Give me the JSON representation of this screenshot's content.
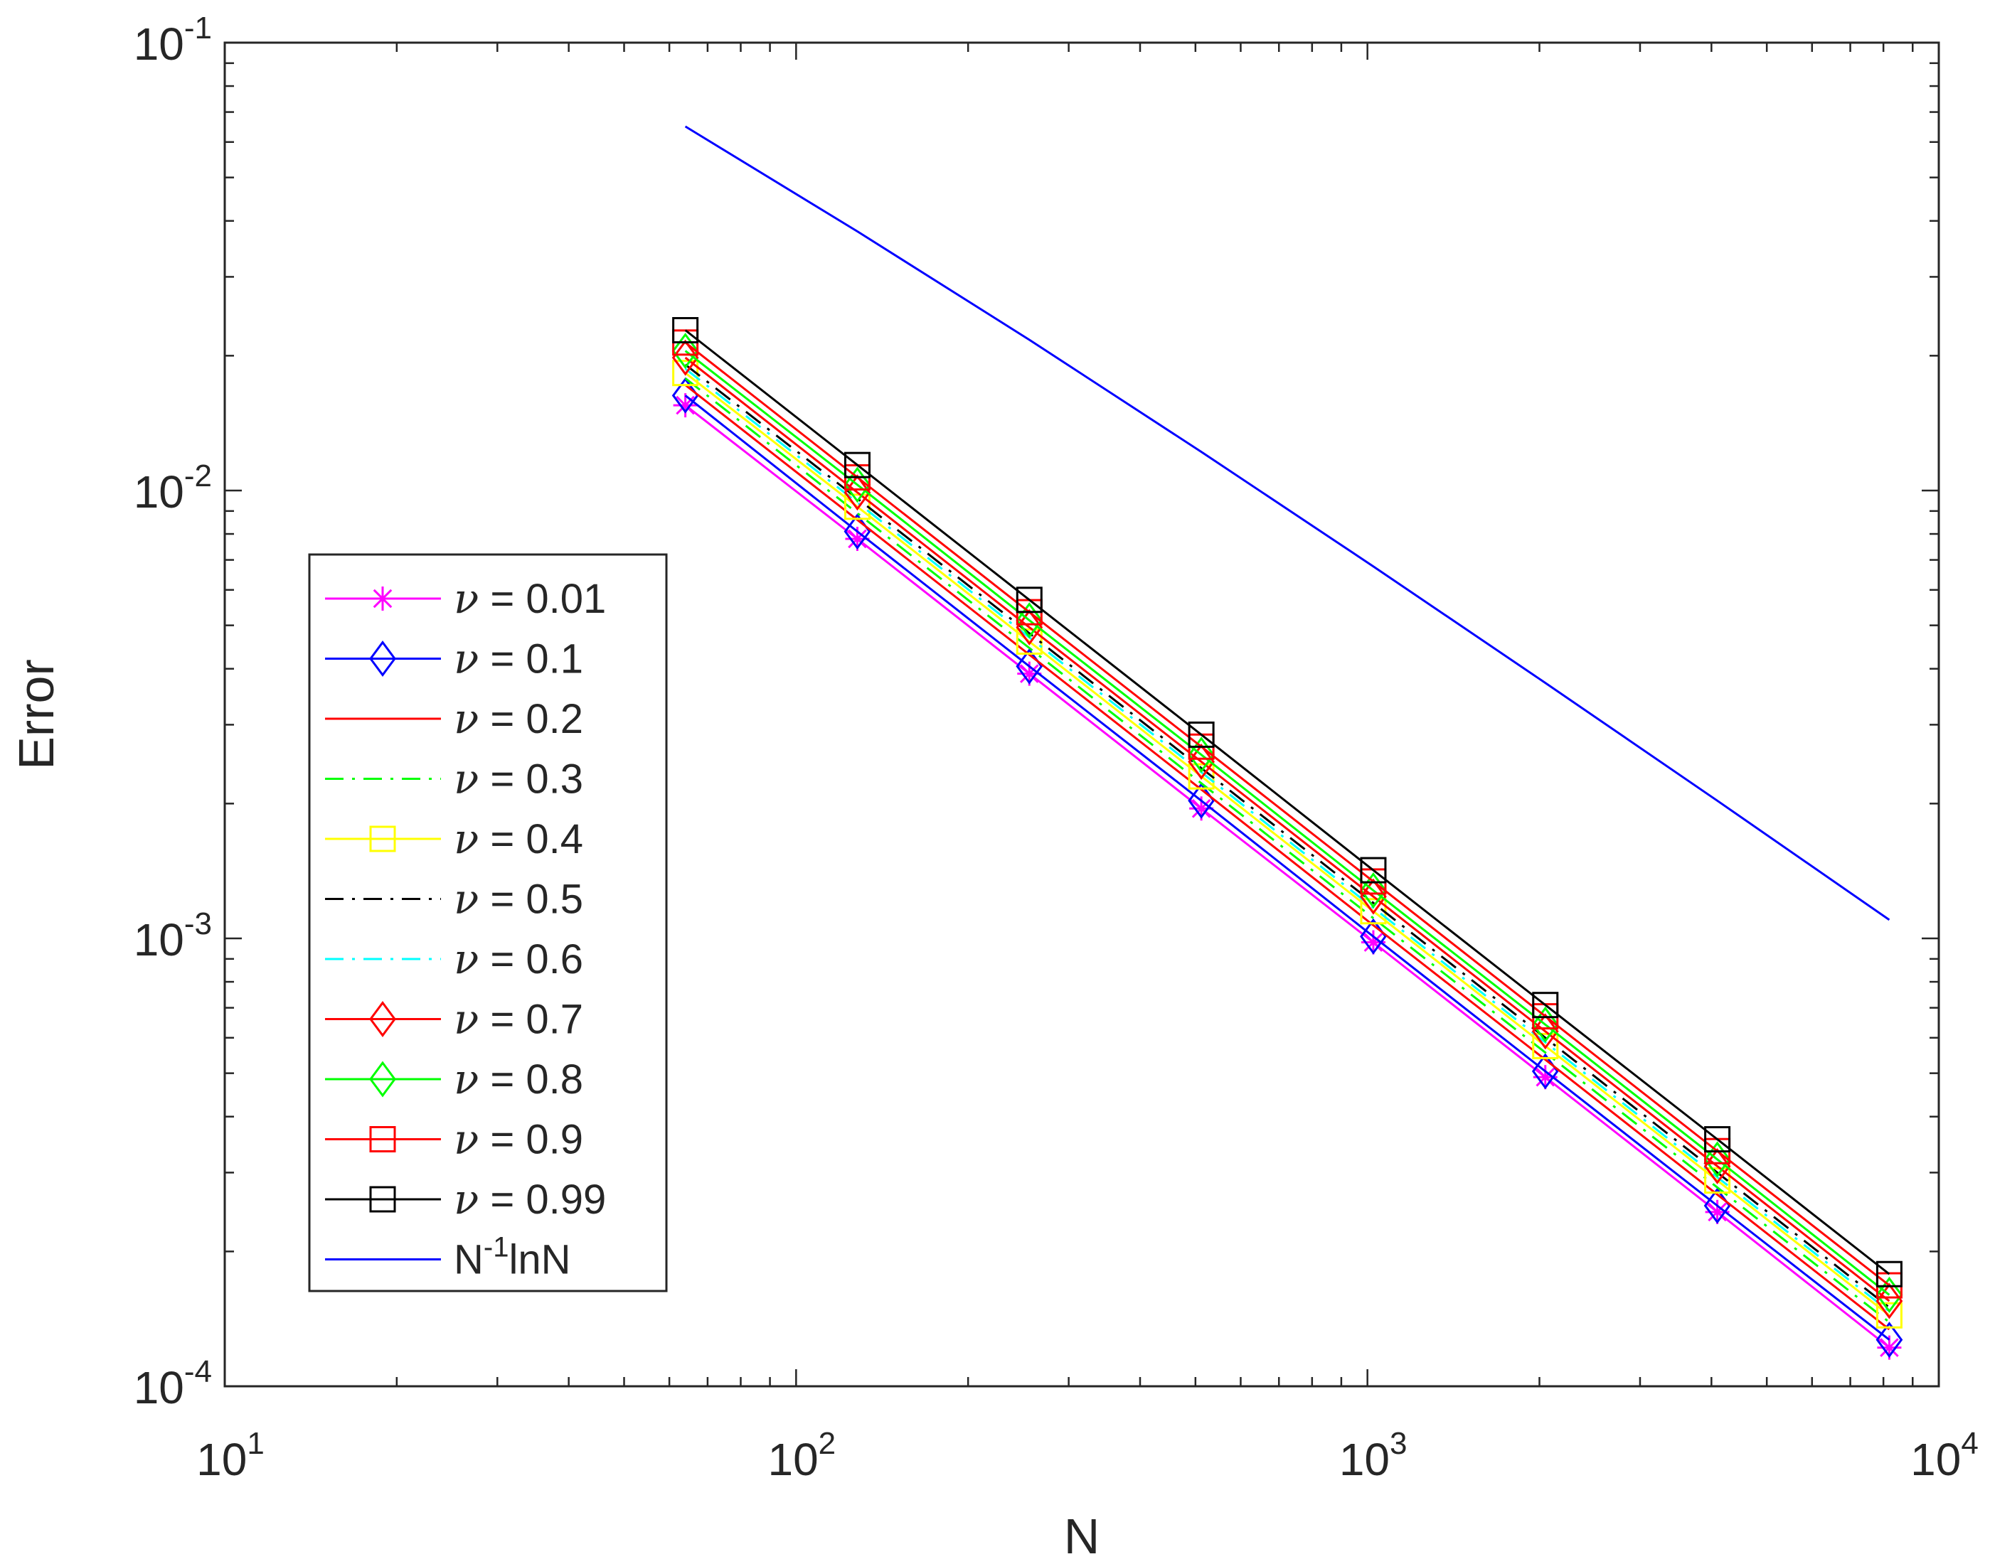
{
  "chart_data": {
    "type": "line",
    "x_scale": "log",
    "y_scale": "log",
    "xlabel": "N",
    "ylabel": "Error",
    "xlim": [
      10,
      10000
    ],
    "ylim": [
      0.0001,
      0.1
    ],
    "x_ticks": [
      {
        "base": "10",
        "exp": "1"
      },
      {
        "base": "10",
        "exp": "2"
      },
      {
        "base": "10",
        "exp": "3"
      },
      {
        "base": "10",
        "exp": "4"
      }
    ],
    "y_ticks": [
      {
        "base": "10",
        "exp": "-4"
      },
      {
        "base": "10",
        "exp": "-3"
      },
      {
        "base": "10",
        "exp": "-2"
      },
      {
        "base": "10",
        "exp": "-1"
      }
    ],
    "legend_position": "lower-left",
    "x": [
      64,
      128,
      256,
      512,
      1024,
      2048,
      4096,
      8192
    ],
    "series": [
      {
        "name_prefix": "ν",
        "name_value": " = 0.01",
        "color": "#ff00ff",
        "dash": "solid",
        "marker": "asterisk",
        "values": [
          0.0155,
          0.0078,
          0.0039,
          0.00195,
          0.00098,
          0.00049,
          0.000245,
          0.000122
        ]
      },
      {
        "name_prefix": "ν",
        "name_value": " = 0.1",
        "color": "#0000ff",
        "dash": "solid",
        "marker": "diamond",
        "values": [
          0.0163,
          0.0081,
          0.00405,
          0.00203,
          0.00101,
          0.000505,
          0.000253,
          0.000127
        ]
      },
      {
        "name_prefix": "ν",
        "name_value": " = 0.2",
        "color": "#ff0000",
        "dash": "solid",
        "marker": "none",
        "values": [
          0.0172,
          0.0086,
          0.0043,
          0.00215,
          0.00107,
          0.000536,
          0.000268,
          0.000134
        ]
      },
      {
        "name_prefix": "ν",
        "name_value": " = 0.3",
        "color": "#00ff00",
        "dash": "dashdot",
        "marker": "none",
        "values": [
          0.0178,
          0.0089,
          0.00445,
          0.00222,
          0.00111,
          0.000556,
          0.000278,
          0.000139
        ]
      },
      {
        "name_prefix": "ν",
        "name_value": " = 0.4",
        "color": "#ffff00",
        "dash": "solid",
        "marker": "square",
        "values": [
          0.0183,
          0.0092,
          0.0046,
          0.0023,
          0.00115,
          0.000575,
          0.000288,
          0.000144
        ]
      },
      {
        "name_prefix": "ν",
        "name_value": " = 0.5",
        "color": "#000000",
        "dash": "dashdot",
        "marker": "none",
        "values": [
          0.0191,
          0.0096,
          0.0048,
          0.0024,
          0.0012,
          0.0006,
          0.0003,
          0.00015
        ]
      },
      {
        "name_prefix": "ν",
        "name_value": " = 0.6",
        "color": "#00ffff",
        "dash": "dashdot",
        "marker": "none",
        "values": [
          0.0187,
          0.0094,
          0.0047,
          0.00235,
          0.00117,
          0.000586,
          0.000293,
          0.000147
        ]
      },
      {
        "name_prefix": "ν",
        "name_value": " = 0.7",
        "color": "#ff0000",
        "dash": "solid",
        "marker": "diamond",
        "values": [
          0.0198,
          0.0099,
          0.00495,
          0.00248,
          0.00124,
          0.00062,
          0.00031,
          0.000155
        ]
      },
      {
        "name_prefix": "ν",
        "name_value": " = 0.8",
        "color": "#00ff00",
        "dash": "solid",
        "marker": "diamond",
        "values": [
          0.0205,
          0.0103,
          0.00513,
          0.00257,
          0.00128,
          0.000642,
          0.000321,
          0.00016
        ]
      },
      {
        "name_prefix": "ν",
        "name_value": " = 0.9",
        "color": "#ff0000",
        "dash": "solid",
        "marker": "square",
        "values": [
          0.0214,
          0.0107,
          0.00535,
          0.00268,
          0.00134,
          0.00067,
          0.000335,
          0.000168
        ]
      },
      {
        "name_prefix": "ν",
        "name_value": " = 0.99",
        "color": "#000000",
        "dash": "solid",
        "marker": "square",
        "values": [
          0.0228,
          0.0114,
          0.0057,
          0.00285,
          0.00142,
          0.00071,
          0.000356,
          0.000178
        ]
      },
      {
        "name_prefix": "N",
        "name_sup": "-1",
        "name_value": "lnN",
        "color": "#0000ff",
        "dash": "solid",
        "marker": "none",
        "reference": true,
        "values": [
          0.065,
          0.0379,
          0.0217,
          0.0122,
          0.00677,
          0.00372,
          0.00203,
          0.0011
        ]
      }
    ]
  }
}
